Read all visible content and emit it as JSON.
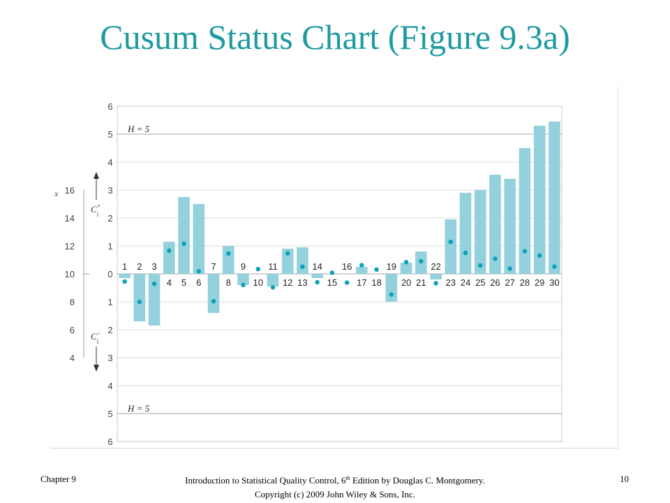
{
  "slide": {
    "title": "Cusum Status Chart (Figure 9.3a)"
  },
  "footer": {
    "chapter": "Chapter 9",
    "citation_pre": "Introduction to Statistical Quality Control, 6",
    "citation_sup": "th",
    "citation_post": " Edition by Douglas C. Montgomery.",
    "copyright": "Copyright (c) 2009  John Wiley & Sons, Inc.",
    "page": "10"
  },
  "colors": {
    "title": "#1e9aa0",
    "bar": "#93d1dc",
    "dot": "#0aa2b6",
    "grid": "#c8c8c8"
  },
  "chart_data": {
    "type": "bar",
    "x_label": "x",
    "x_ticks": [
      4,
      6,
      8,
      10,
      12,
      14,
      16
    ],
    "x_range": [
      4,
      16
    ],
    "cusum_ticks": [
      "6",
      "5",
      "4",
      "3",
      "2",
      "1",
      "0",
      "1",
      "2",
      "3",
      "4",
      "5",
      "6"
    ],
    "cusum_range": [
      -6,
      6
    ],
    "upper_label": "C",
    "upper_sup": "+",
    "upper_sub": "i",
    "lower_label": "C",
    "lower_sup": "−",
    "lower_sub": "i",
    "h_upper_label": "H = 5",
    "h_lower_label": "H = 5",
    "h_value": 5,
    "observations": [
      "1",
      "2",
      "3",
      "4",
      "5",
      "6",
      "7",
      "8",
      "9",
      "10",
      "11",
      "12",
      "13",
      "14",
      "15",
      "16",
      "17",
      "18",
      "19",
      "20",
      "21",
      "22",
      "23",
      "24",
      "25",
      "26",
      "27",
      "28",
      "29",
      "30"
    ],
    "c_plus": [
      0,
      0,
      0,
      1.15,
      2.75,
      2.5,
      0,
      1,
      0,
      0,
      0,
      0.9,
      0.95,
      0,
      0,
      0,
      0.25,
      0,
      0,
      0.4,
      0.8,
      0,
      1.95,
      2.9,
      3,
      3.55,
      3.4,
      4.5,
      5.3,
      5.45
    ],
    "c_minus": [
      0.15,
      1.7,
      1.85,
      0,
      0,
      0,
      1.4,
      0,
      0.4,
      0,
      0.45,
      0,
      0,
      0.15,
      0,
      0,
      0,
      0,
      1,
      0,
      0,
      0.2,
      0,
      0,
      0,
      0,
      0,
      0,
      0,
      0
    ],
    "x_values": [
      9.45,
      7.99,
      9.29,
      11.66,
      12.16,
      10.18,
      8.04,
      11.46,
      9.2,
      10.34,
      9.03,
      11.47,
      10.51,
      9.4,
      10.08,
      9.37,
      10.62,
      10.31,
      8.52,
      10.84,
      10.9,
      9.33,
      12.29,
      11.5,
      10.6,
      11.08,
      10.38,
      11.62,
      11.31,
      10.52
    ],
    "label_positions": [
      "above",
      "above",
      "above",
      "below",
      "below",
      "below",
      "above",
      "below",
      "above",
      "below",
      "above",
      "below",
      "below",
      "above",
      "below",
      "above",
      "below",
      "below",
      "above",
      "below",
      "below",
      "above",
      "below",
      "below",
      "below",
      "below",
      "below",
      "below",
      "below",
      "below"
    ]
  }
}
